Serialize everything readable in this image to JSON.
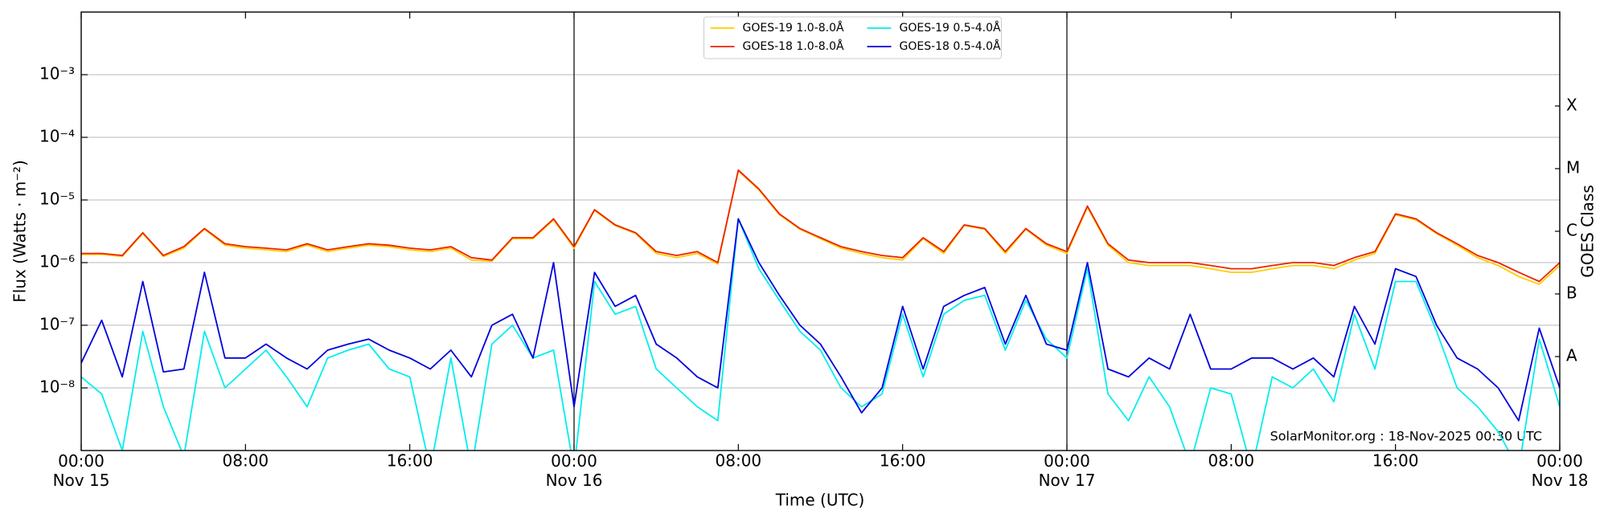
{
  "chart_data": {
    "type": "line",
    "xlabel": "Time (UTC)",
    "ylabel": "Flux (Watts · m⁻²)",
    "y2label": "GOES Class",
    "annotation": "SolarMonitor.org : 18-Nov-2025 00:30 UTC",
    "log_y": true,
    "grid": true,
    "legend": "upper center",
    "ylim": [
      1e-09,
      0.01
    ],
    "yticks": [
      {
        "value": 1e-08,
        "label": "10⁻⁸"
      },
      {
        "value": 1e-07,
        "label": "10⁻⁷"
      },
      {
        "value": 1e-06,
        "label": "10⁻⁶"
      },
      {
        "value": 1e-05,
        "label": "10⁻⁵"
      },
      {
        "value": 0.0001,
        "label": "10⁻⁴"
      },
      {
        "value": 0.001,
        "label": "10⁻³"
      }
    ],
    "y2lim": [
      1e-09,
      0.01
    ],
    "y2ticks": [
      {
        "value": 3.162e-08,
        "label": "A"
      },
      {
        "value": 3.162e-07,
        "label": "B"
      },
      {
        "value": 3.162e-06,
        "label": "C"
      },
      {
        "value": 3.162e-05,
        "label": "M"
      },
      {
        "value": 0.0003162,
        "label": "X"
      }
    ],
    "xlim": [
      "Nov 15 00:00",
      "Nov 18 00:00"
    ],
    "xticks": [
      {
        "value": "Nov 15 00:00",
        "label": "00:00\nNov 15"
      },
      {
        "value": "Nov 15 08:00",
        "label": "08:00"
      },
      {
        "value": "Nov 15 16:00",
        "label": "16:00"
      },
      {
        "value": "Nov 16 00:00",
        "label": "00:00\nNov 16"
      },
      {
        "value": "Nov 16 08:00",
        "label": "08:00"
      },
      {
        "value": "Nov 16 16:00",
        "label": "16:00"
      },
      {
        "value": "Nov 17 00:00",
        "label": "00:00\nNov 17"
      },
      {
        "value": "Nov 17 08:00",
        "label": "08:00"
      },
      {
        "value": "Nov 17 16:00",
        "label": "16:00"
      },
      {
        "value": "Nov 18 00:00",
        "label": "00:00\nNov 18"
      }
    ],
    "day_lines": [
      "Nov 16 00:00",
      "Nov 17 00:00"
    ],
    "x": [
      "Nov 15 00:00",
      "Nov 15 01:00",
      "Nov 15 02:00",
      "Nov 15 03:00",
      "Nov 15 04:00",
      "Nov 15 05:00",
      "Nov 15 06:00",
      "Nov 15 07:00",
      "Nov 15 08:00",
      "Nov 15 09:00",
      "Nov 15 10:00",
      "Nov 15 11:00",
      "Nov 15 12:00",
      "Nov 15 13:00",
      "Nov 15 14:00",
      "Nov 15 15:00",
      "Nov 15 16:00",
      "Nov 15 17:00",
      "Nov 15 18:00",
      "Nov 15 19:00",
      "Nov 15 20:00",
      "Nov 15 21:00",
      "Nov 15 22:00",
      "Nov 15 23:00",
      "Nov 16 00:00",
      "Nov 16 01:00",
      "Nov 16 02:00",
      "Nov 16 03:00",
      "Nov 16 04:00",
      "Nov 16 05:00",
      "Nov 16 06:00",
      "Nov 16 07:00",
      "Nov 16 08:00",
      "Nov 16 09:00",
      "Nov 16 10:00",
      "Nov 16 11:00",
      "Nov 16 12:00",
      "Nov 16 13:00",
      "Nov 16 14:00",
      "Nov 16 15:00",
      "Nov 16 16:00",
      "Nov 16 17:00",
      "Nov 16 18:00",
      "Nov 16 19:00",
      "Nov 16 20:00",
      "Nov 16 21:00",
      "Nov 16 22:00",
      "Nov 16 23:00",
      "Nov 17 00:00",
      "Nov 17 01:00",
      "Nov 17 02:00",
      "Nov 17 03:00",
      "Nov 17 04:00",
      "Nov 17 05:00",
      "Nov 17 06:00",
      "Nov 17 07:00",
      "Nov 17 08:00",
      "Nov 17 09:00",
      "Nov 17 10:00",
      "Nov 17 11:00",
      "Nov 17 12:00",
      "Nov 17 13:00",
      "Nov 17 14:00",
      "Nov 17 15:00",
      "Nov 17 16:00",
      "Nov 17 17:00",
      "Nov 17 18:00",
      "Nov 17 19:00",
      "Nov 17 20:00",
      "Nov 17 21:00",
      "Nov 17 22:00",
      "Nov 17 23:00",
      "Nov 18 00:00"
    ],
    "series": [
      {
        "name": "GOES-19 1.0-8.0Å",
        "color": "#ffcc00",
        "values": [
          1.35e-06,
          1.35e-06,
          1.25e-06,
          2.9e-06,
          1.25e-06,
          1.7e-06,
          3.4e-06,
          1.9e-06,
          1.7e-06,
          1.6e-06,
          1.5e-06,
          1.9e-06,
          1.5e-06,
          1.7e-06,
          1.9e-06,
          1.8e-06,
          1.6e-06,
          1.5e-06,
          1.7e-06,
          1.1e-06,
          1.05e-06,
          2.4e-06,
          2.4e-06,
          4.8e-06,
          1.7e-06,
          6.8e-06,
          3.9e-06,
          2.9e-06,
          1.4e-06,
          1.2e-06,
          1.4e-06,
          9.5e-07,
          2.9e-05,
          1.45e-05,
          5.8e-06,
          3.4e-06,
          2.4e-06,
          1.7e-06,
          1.4e-06,
          1.2e-06,
          1.1e-06,
          2.4e-06,
          1.4e-06,
          3.9e-06,
          3.4e-06,
          1.4e-06,
          3.4e-06,
          1.9e-06,
          1.4e-06,
          7.6e-06,
          1.9e-06,
          1e-06,
          9e-07,
          9e-07,
          9e-07,
          8e-07,
          7e-07,
          7e-07,
          8e-07,
          9e-07,
          9e-07,
          8e-07,
          1.1e-06,
          1.4e-06,
          5.8e-06,
          4.8e-06,
          2.9e-06,
          1.9e-06,
          1.2e-06,
          9e-07,
          6e-07,
          4.5e-07,
          9e-07
        ]
      },
      {
        "name": "GOES-18 1.0-8.0Å",
        "color": "#ee2200",
        "values": [
          1.4e-06,
          1.4e-06,
          1.3e-06,
          3e-06,
          1.3e-06,
          1.8e-06,
          3.5e-06,
          2e-06,
          1.8e-06,
          1.7e-06,
          1.6e-06,
          2e-06,
          1.6e-06,
          1.8e-06,
          2e-06,
          1.9e-06,
          1.7e-06,
          1.6e-06,
          1.8e-06,
          1.2e-06,
          1.1e-06,
          2.5e-06,
          2.5e-06,
          5e-06,
          1.8e-06,
          7e-06,
          4e-06,
          3e-06,
          1.5e-06,
          1.3e-06,
          1.5e-06,
          1e-06,
          3e-05,
          1.5e-05,
          6e-06,
          3.5e-06,
          2.5e-06,
          1.8e-06,
          1.5e-06,
          1.3e-06,
          1.2e-06,
          2.5e-06,
          1.5e-06,
          4e-06,
          3.5e-06,
          1.5e-06,
          3.5e-06,
          2e-06,
          1.5e-06,
          8e-06,
          2e-06,
          1.1e-06,
          1e-06,
          1e-06,
          1e-06,
          9e-07,
          8e-07,
          8e-07,
          9e-07,
          1e-06,
          1e-06,
          9e-07,
          1.2e-06,
          1.5e-06,
          6e-06,
          5e-06,
          3e-06,
          2e-06,
          1.3e-06,
          1e-06,
          7e-07,
          5e-07,
          1e-06
        ]
      },
      {
        "name": "GOES-19 0.5-4.0Å",
        "color": "#00eeee",
        "values": [
          1.5e-08,
          8e-09,
          1e-09,
          8e-08,
          5e-09,
          8e-10,
          8e-08,
          1e-08,
          2e-08,
          4e-08,
          1.5e-08,
          5e-09,
          3e-08,
          4e-08,
          5e-08,
          2e-08,
          1.5e-08,
          5e-10,
          3e-08,
          5e-10,
          5e-08,
          1e-07,
          3e-08,
          4e-08,
          5e-10,
          5e-07,
          1.5e-07,
          2e-07,
          2e-08,
          1e-08,
          5e-09,
          3e-09,
          5e-06,
          8e-07,
          2.5e-07,
          8e-08,
          4e-08,
          1e-08,
          5e-09,
          8e-09,
          1.5e-07,
          1.5e-08,
          1.5e-07,
          2.5e-07,
          3e-07,
          4e-08,
          2.5e-07,
          6e-08,
          3e-08,
          8e-07,
          8e-09,
          3e-09,
          1.5e-08,
          5e-09,
          6e-10,
          1e-08,
          8e-09,
          5e-10,
          1.5e-08,
          1e-08,
          2e-08,
          6e-09,
          1.5e-07,
          2e-08,
          5e-07,
          5e-07,
          8e-08,
          1e-08,
          5e-09,
          2e-09,
          5e-10,
          6e-08,
          5e-09
        ]
      },
      {
        "name": "GOES-18 0.5-4.0Å",
        "color": "#0000dd",
        "values": [
          2.5e-08,
          1.2e-07,
          1.5e-08,
          5e-07,
          1.8e-08,
          2e-08,
          7e-07,
          3e-08,
          3e-08,
          5e-08,
          3e-08,
          2e-08,
          4e-08,
          5e-08,
          6e-08,
          4e-08,
          3e-08,
          2e-08,
          4e-08,
          1.5e-08,
          1e-07,
          1.5e-07,
          3e-08,
          1e-06,
          5e-09,
          7e-07,
          2e-07,
          3e-07,
          5e-08,
          3e-08,
          1.5e-08,
          1e-08,
          5e-06,
          1e-06,
          3e-07,
          1e-07,
          5e-08,
          1.5e-08,
          4e-09,
          1e-08,
          2e-07,
          2e-08,
          2e-07,
          3e-07,
          4e-07,
          5e-08,
          3e-07,
          5e-08,
          4e-08,
          1e-06,
          2e-08,
          1.5e-08,
          3e-08,
          2e-08,
          1.5e-07,
          2e-08,
          2e-08,
          3e-08,
          3e-08,
          2e-08,
          3e-08,
          1.5e-08,
          2e-07,
          5e-08,
          8e-07,
          6e-07,
          1e-07,
          3e-08,
          2e-08,
          1e-08,
          3e-09,
          9e-08,
          1e-08
        ]
      }
    ]
  }
}
